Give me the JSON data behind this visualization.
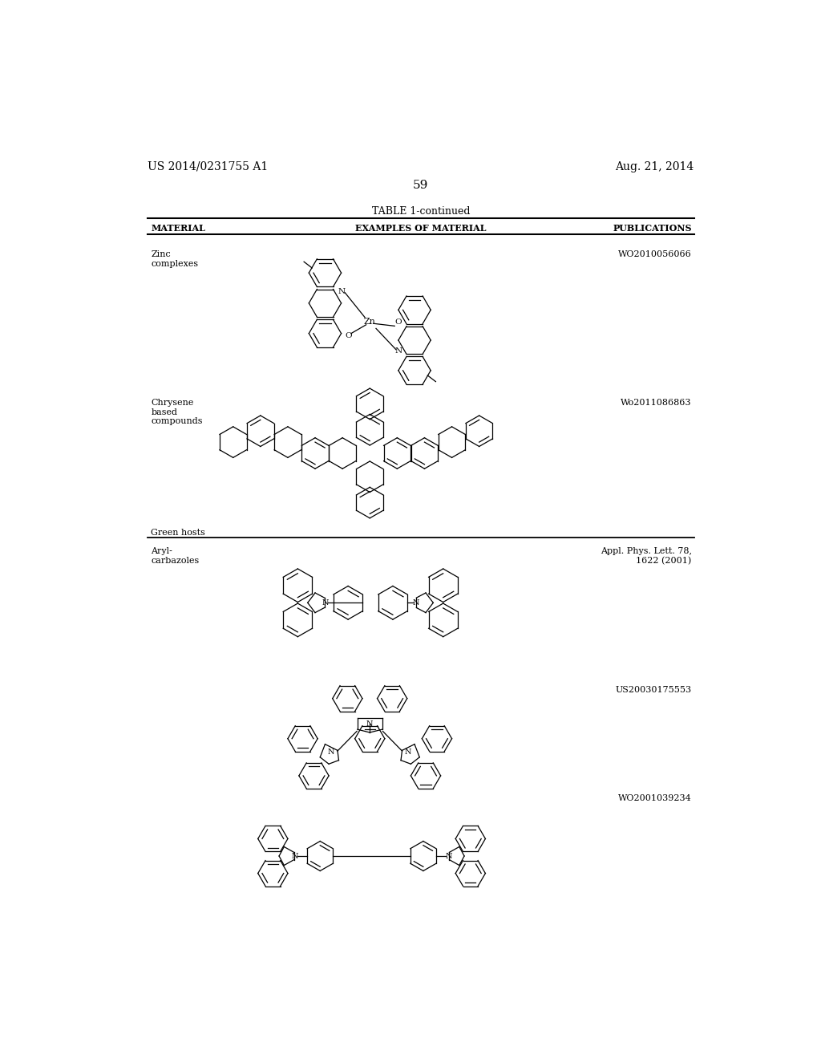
{
  "bg_color": "#ffffff",
  "header_left": "US 2014/0231755 A1",
  "header_right": "Aug. 21, 2014",
  "page_number": "59",
  "table_title": "TABLE 1-continued",
  "col1_header": "MATERIAL",
  "col2_header": "EXAMPLES OF MATERIAL",
  "col3_header": "PUBLICATIONS",
  "row1_material": "Zinc\ncomplexes",
  "row1_pub": "WO2010056066",
  "row2_material": "Chrysene\nbased\ncompounds",
  "row2_pub": "Wo2011086863",
  "section_header": "Green hosts",
  "row3_material": "Aryl-\ncarbazoles",
  "row3_pub": "Appl. Phys. Lett. 78,\n1622 (2001)",
  "row4_pub": "US20030175553",
  "row5_pub": "WO2001039234"
}
